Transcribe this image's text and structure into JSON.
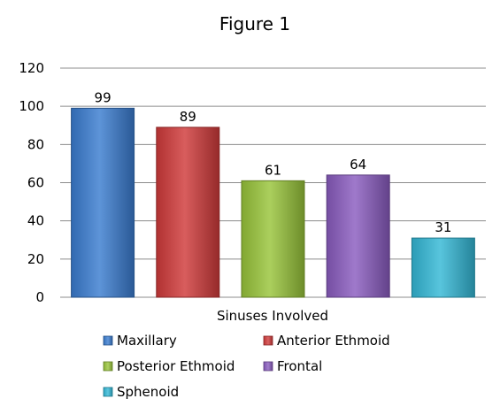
{
  "chart_data": {
    "type": "bar",
    "title": "Figure 1",
    "xlabel": "Sinuses Involved",
    "ylabel": "",
    "ylim": [
      0,
      120
    ],
    "yticks": [
      0,
      20,
      40,
      60,
      80,
      100,
      120
    ],
    "grid": true,
    "legend_position": "bottom",
    "series": [
      {
        "name": "Maxillary",
        "values": [
          99
        ],
        "color": "#3A7CD0"
      },
      {
        "name": "Anterior Ethmoid",
        "values": [
          89
        ],
        "color": "#D03A3A"
      },
      {
        "name": "Posterior Ethmoid",
        "values": [
          61
        ],
        "color": "#98C43A"
      },
      {
        "name": "Frontal",
        "values": [
          64
        ],
        "color": "#8A5CBF"
      },
      {
        "name": "Sphenoid",
        "values": [
          31
        ],
        "color": "#33B8D6"
      }
    ]
  }
}
